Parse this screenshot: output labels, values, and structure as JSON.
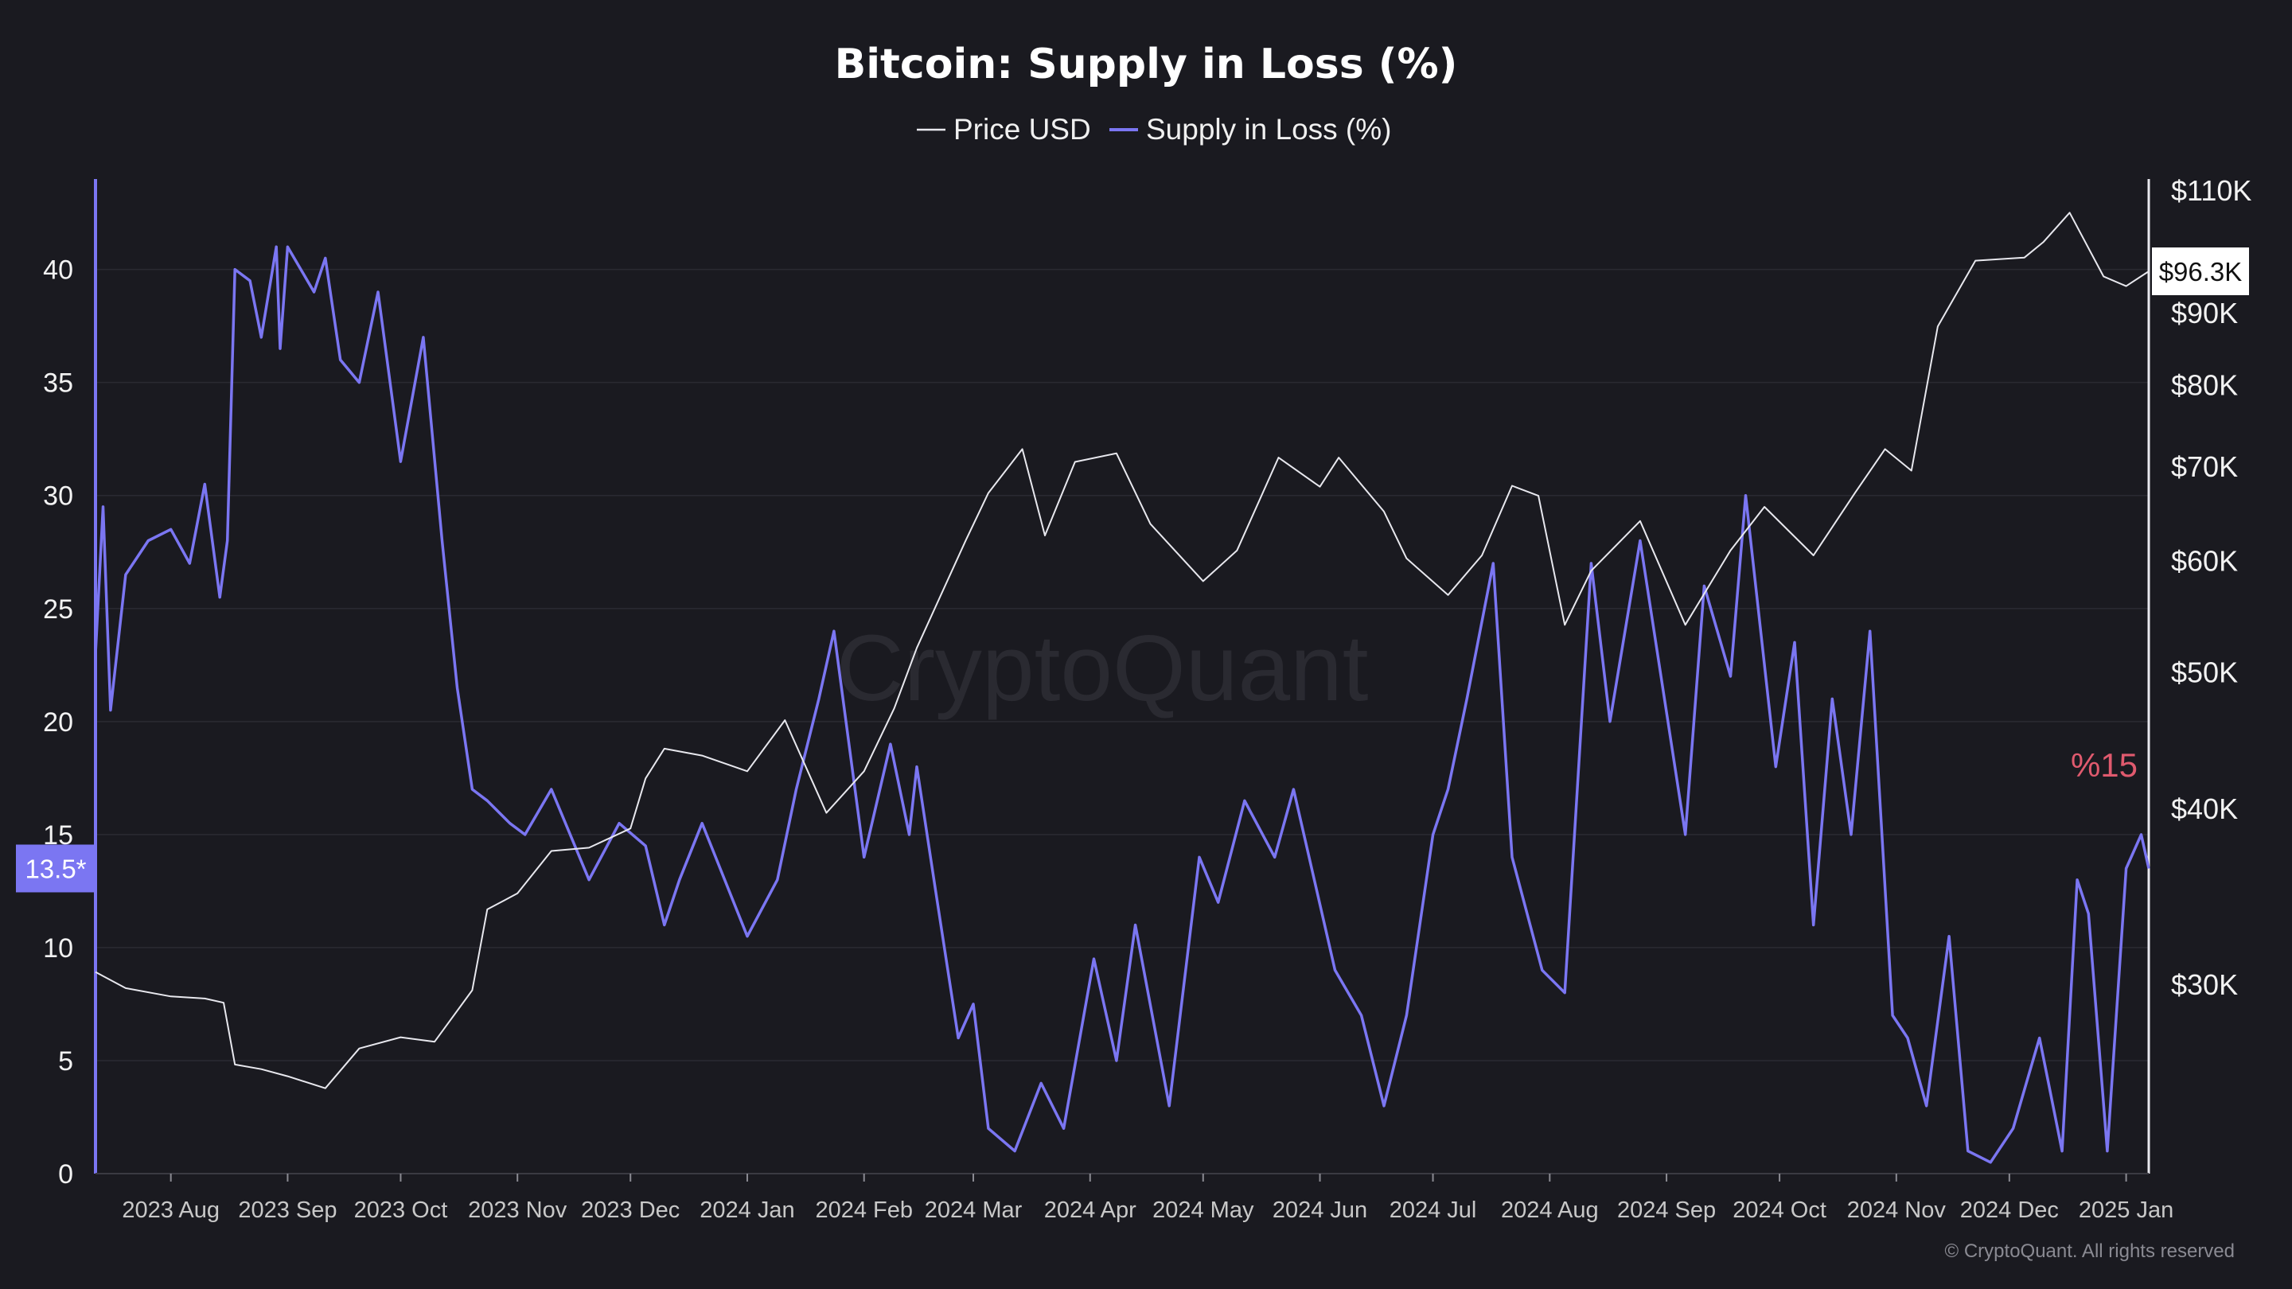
{
  "chart_data": {
    "type": "line",
    "title": "Bitcoin: Supply in Loss (%)",
    "legend": [
      "Price USD",
      "Supply in Loss (%)"
    ],
    "legend_placement": "top-center",
    "colors": {
      "background": "#1a1a20",
      "price": "#e8e8ee",
      "supply": "#7b76f2",
      "annotation": "#e05a6e",
      "grid": "#2a2a32"
    },
    "grid": true,
    "x_ticks": [
      "2023 Aug",
      "2023 Sep",
      "2023 Oct",
      "2023 Nov",
      "2023 Dec",
      "2024 Jan",
      "2024 Feb",
      "2024 Mar",
      "2024 Apr",
      "2024 May",
      "2024 Jun",
      "2024 Jul",
      "2024 Aug",
      "2024 Sep",
      "2024 Oct",
      "2024 Nov",
      "2024 Dec",
      "2025 Jan"
    ],
    "x_range": [
      "2023-07-12",
      "2025-01-07"
    ],
    "y_left": {
      "ticks": [
        "0",
        "5",
        "10",
        "15",
        "20",
        "25",
        "30",
        "35",
        "40"
      ],
      "ylim": [
        0,
        44
      ]
    },
    "y_right": {
      "scale": "log",
      "ticks": [
        "$30K",
        "$40K",
        "$50K",
        "$60K",
        "$70K",
        "$80K",
        "$90K",
        "$110K"
      ],
      "ylim": [
        22000,
        112000
      ]
    },
    "current_values": {
      "supply": "13.5*",
      "price": "$96.3K"
    },
    "annotation": "%15",
    "series": [
      {
        "name": "Price USD",
        "axis": "right",
        "x": [
          "2023-07-12",
          "2023-07-20",
          "2023-08-01",
          "2023-08-10",
          "2023-08-15",
          "2023-08-18",
          "2023-08-25",
          "2023-09-01",
          "2023-09-11",
          "2023-09-20",
          "2023-10-01",
          "2023-10-10",
          "2023-10-20",
          "2023-10-24",
          "2023-11-01",
          "2023-11-10",
          "2023-11-20",
          "2023-12-01",
          "2023-12-05",
          "2023-12-10",
          "2023-12-20",
          "2024-01-01",
          "2024-01-11",
          "2024-01-22",
          "2024-02-01",
          "2024-02-09",
          "2024-02-15",
          "2024-02-28",
          "2024-03-05",
          "2024-03-14",
          "2024-03-20",
          "2024-03-28",
          "2024-04-08",
          "2024-04-17",
          "2024-05-01",
          "2024-05-10",
          "2024-05-21",
          "2024-06-01",
          "2024-06-06",
          "2024-06-18",
          "2024-06-24",
          "2024-07-05",
          "2024-07-14",
          "2024-07-22",
          "2024-07-29",
          "2024-08-05",
          "2024-08-12",
          "2024-08-25",
          "2024-09-06",
          "2024-09-18",
          "2024-09-27",
          "2024-10-10",
          "2024-10-21",
          "2024-10-29",
          "2024-11-05",
          "2024-11-12",
          "2024-11-22",
          "2024-12-05",
          "2024-12-10",
          "2024-12-17",
          "2024-12-26",
          "2025-01-01",
          "2025-01-07"
        ],
        "values": [
          30600,
          29800,
          29400,
          29300,
          29100,
          26300,
          26100,
          25800,
          25300,
          27000,
          27500,
          27300,
          29700,
          33900,
          34800,
          37300,
          37500,
          38700,
          42000,
          44100,
          43600,
          42500,
          46200,
          39700,
          42500,
          47100,
          52000,
          62000,
          67000,
          72000,
          62500,
          70500,
          71500,
          63700,
          58000,
          61000,
          71000,
          67700,
          71000,
          65000,
          60200,
          56700,
          60500,
          67800,
          66700,
          54000,
          59000,
          64000,
          54000,
          61000,
          65500,
          60500,
          67000,
          72000,
          69500,
          88000,
          98000,
          98500,
          101000,
          106000,
          95500,
          94000,
          96300
        ]
      },
      {
        "name": "Supply in Loss (%)",
        "axis": "left",
        "x": [
          "2023-07-12",
          "2023-07-14",
          "2023-07-16",
          "2023-07-20",
          "2023-07-26",
          "2023-08-01",
          "2023-08-06",
          "2023-08-10",
          "2023-08-14",
          "2023-08-16",
          "2023-08-18",
          "2023-08-22",
          "2023-08-25",
          "2023-08-29",
          "2023-08-30",
          "2023-09-01",
          "2023-09-08",
          "2023-09-11",
          "2023-09-15",
          "2023-09-20",
          "2023-09-25",
          "2023-10-01",
          "2023-10-07",
          "2023-10-12",
          "2023-10-16",
          "2023-10-20",
          "2023-10-24",
          "2023-10-30",
          "2023-11-03",
          "2023-11-10",
          "2023-11-20",
          "2023-11-28",
          "2023-12-05",
          "2023-12-10",
          "2023-12-14",
          "2023-12-20",
          "2024-01-01",
          "2024-01-09",
          "2024-01-14",
          "2024-01-20",
          "2024-01-24",
          "2024-02-01",
          "2024-02-08",
          "2024-02-13",
          "2024-02-15",
          "2024-02-20",
          "2024-02-26",
          "2024-03-01",
          "2024-03-05",
          "2024-03-12",
          "2024-03-19",
          "2024-03-25",
          "2024-04-02",
          "2024-04-08",
          "2024-04-13",
          "2024-04-22",
          "2024-04-30",
          "2024-05-05",
          "2024-05-12",
          "2024-05-20",
          "2024-05-25",
          "2024-06-05",
          "2024-06-12",
          "2024-06-18",
          "2024-06-24",
          "2024-07-01",
          "2024-07-05",
          "2024-07-10",
          "2024-07-17",
          "2024-07-22",
          "2024-07-30",
          "2024-08-05",
          "2024-08-12",
          "2024-08-17",
          "2024-08-25",
          "2024-09-06",
          "2024-09-11",
          "2024-09-18",
          "2024-09-22",
          "2024-09-30",
          "2024-10-05",
          "2024-10-10",
          "2024-10-15",
          "2024-10-20",
          "2024-10-25",
          "2024-10-31",
          "2024-11-04",
          "2024-11-09",
          "2024-11-15",
          "2024-11-20",
          "2024-11-26",
          "2024-12-02",
          "2024-12-09",
          "2024-12-15",
          "2024-12-19",
          "2024-12-22",
          "2024-12-27",
          "2025-01-01",
          "2025-01-05",
          "2025-01-07"
        ],
        "values": [
          23,
          29.5,
          20.5,
          26.5,
          28,
          28.5,
          27,
          30.5,
          25.5,
          28,
          40,
          39.5,
          37,
          41,
          36.5,
          41,
          39,
          40.5,
          36,
          35,
          39,
          31.5,
          37,
          28,
          21.5,
          17,
          16.5,
          15.5,
          15,
          17,
          13,
          15.5,
          14.5,
          11,
          13,
          15.5,
          10.5,
          13,
          17,
          21,
          24,
          14,
          19,
          15,
          18,
          12.5,
          6,
          7.5,
          2,
          1,
          4,
          2,
          9.5,
          5,
          11,
          3,
          14,
          12,
          16.5,
          14,
          17,
          9,
          7,
          3,
          7,
          15,
          17,
          21,
          27,
          14,
          9,
          8,
          27,
          20,
          28,
          15,
          26,
          22,
          30,
          18,
          23.5,
          11,
          21,
          15,
          24,
          7,
          6,
          3,
          10.5,
          1,
          0.5,
          2,
          6,
          1,
          13,
          11.5,
          1,
          13.5,
          15,
          13.5
        ]
      }
    ],
    "watermark": "CryptoQuant",
    "copyright": "© CryptoQuant. All rights reserved"
  }
}
